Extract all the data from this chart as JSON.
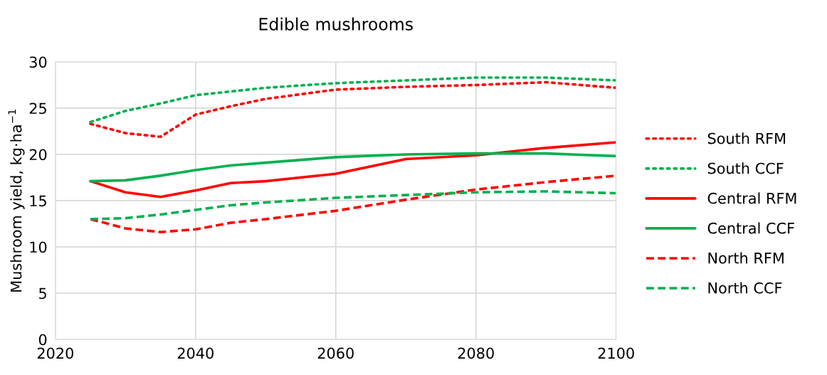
{
  "chart_data": {
    "type": "line",
    "title": "Edible mushrooms",
    "ylabel": "Mushroom yield, kg·ha$^{−1}$",
    "x": [
      2025,
      2030,
      2035,
      2040,
      2045,
      2050,
      2060,
      2070,
      2080,
      2090,
      2100
    ],
    "xlim": [
      2020,
      2100
    ],
    "xticks": [
      2020,
      2040,
      2060,
      2080,
      2100
    ],
    "ylim": [
      0,
      30
    ],
    "yticks": [
      0,
      5,
      10,
      15,
      20,
      25,
      30
    ],
    "grid": true,
    "legend": "right",
    "marker": "none",
    "series": [
      {
        "name": "South RFM",
        "color": "#ff0000",
        "line_style": "dotted",
        "values": [
          23.3,
          22.3,
          21.9,
          24.3,
          25.2,
          26.0,
          27.0,
          27.3,
          27.5,
          27.8,
          27.2
        ]
      },
      {
        "name": "South CCF",
        "color": "#00b050",
        "line_style": "dotted",
        "values": [
          23.5,
          24.7,
          25.5,
          26.4,
          26.8,
          27.2,
          27.7,
          28.0,
          28.3,
          28.3,
          28.0
        ]
      },
      {
        "name": "Central RFM",
        "color": "#ff0000",
        "line_style": "solid",
        "values": [
          17.1,
          15.9,
          15.4,
          16.1,
          16.9,
          17.1,
          17.9,
          19.5,
          19.9,
          20.7,
          21.3
        ]
      },
      {
        "name": "Central CCF",
        "color": "#00b050",
        "line_style": "solid",
        "values": [
          17.1,
          17.2,
          17.7,
          18.3,
          18.8,
          19.1,
          19.7,
          20.0,
          20.1,
          20.1,
          19.8
        ]
      },
      {
        "name": "North RFM",
        "color": "#ff0000",
        "line_style": "dashed",
        "values": [
          13.0,
          12.0,
          11.6,
          11.9,
          12.6,
          13.0,
          13.9,
          15.1,
          16.2,
          17.0,
          17.7
        ]
      },
      {
        "name": "North CCF",
        "color": "#00b050",
        "line_style": "dashed",
        "values": [
          13.0,
          13.1,
          13.5,
          14.0,
          14.5,
          14.8,
          15.3,
          15.6,
          15.9,
          16.0,
          15.8
        ]
      }
    ]
  }
}
